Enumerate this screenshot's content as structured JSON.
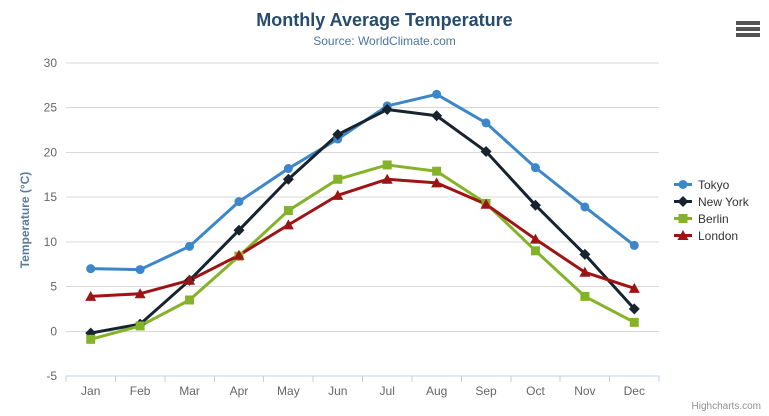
{
  "credits": "Highcharts.com",
  "icons": {
    "menu": "hamburger-menu-icon"
  },
  "colors": {
    "grid": "#d8d8d8",
    "axis_line": "#c0d0e0",
    "axis_label": "#666666",
    "title": "#274b6d",
    "subtitle": "#4d759e",
    "legend_text": "#333333"
  },
  "chart_data": {
    "type": "line",
    "title": "Monthly Average Temperature",
    "subtitle": "Source: WorldClimate.com",
    "xlabel": "",
    "ylabel": "Temperature (°C)",
    "categories": [
      "Jan",
      "Feb",
      "Mar",
      "Apr",
      "May",
      "Jun",
      "Jul",
      "Aug",
      "Sep",
      "Oct",
      "Nov",
      "Dec"
    ],
    "yticks": [
      -5,
      0,
      5,
      10,
      15,
      20,
      25,
      30
    ],
    "ylim": [
      -5,
      30
    ],
    "grid": true,
    "legend_position": "right",
    "series": [
      {
        "name": "Tokyo",
        "color": "#3d87c9",
        "marker": "circle",
        "values": [
          7.0,
          6.9,
          9.5,
          14.5,
          18.2,
          21.5,
          25.2,
          26.5,
          23.3,
          18.3,
          13.9,
          9.6
        ]
      },
      {
        "name": "New York",
        "color": "#17242f",
        "marker": "diamond",
        "values": [
          -0.2,
          0.8,
          5.7,
          11.3,
          17.0,
          22.0,
          24.8,
          24.1,
          20.1,
          14.1,
          8.6,
          2.5
        ]
      },
      {
        "name": "Berlin",
        "color": "#84b32a",
        "marker": "square",
        "values": [
          -0.9,
          0.6,
          3.5,
          8.4,
          13.5,
          17.0,
          18.6,
          17.9,
          14.3,
          9.0,
          3.9,
          1.0
        ]
      },
      {
        "name": "London",
        "color": "#9e1414",
        "marker": "triangle",
        "values": [
          3.9,
          4.2,
          5.7,
          8.5,
          11.9,
          15.2,
          17.0,
          16.6,
          14.2,
          10.3,
          6.6,
          4.8
        ]
      }
    ]
  }
}
